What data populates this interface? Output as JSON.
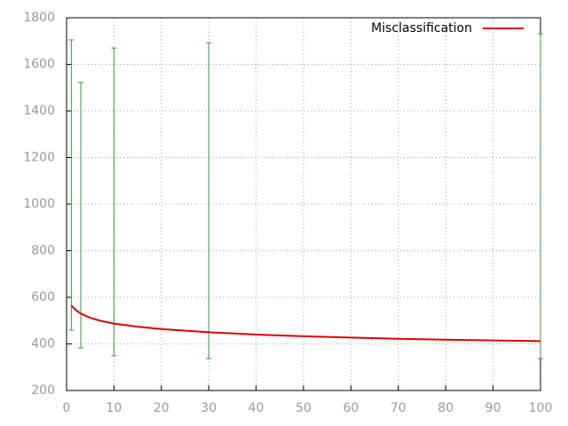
{
  "chart_data": {
    "type": "line",
    "xlim": [
      0,
      100
    ],
    "xticks": [
      0,
      10,
      20,
      30,
      40,
      50,
      60,
      70,
      80,
      90,
      100
    ],
    "ylim": [
      200,
      1800
    ],
    "yticks": [
      200,
      400,
      600,
      800,
      1000,
      1200,
      1400,
      1600,
      1800
    ],
    "grid": true,
    "legend": "top-right",
    "x": [
      1,
      2,
      3,
      5,
      7,
      10,
      15,
      20,
      30,
      40,
      50,
      60,
      70,
      80,
      90,
      100
    ],
    "series": [
      {
        "name": "Misclassification",
        "color": "#e00000",
        "values": [
          565,
          545,
          530,
          512,
          500,
          487,
          474,
          464,
          450,
          440,
          433,
          427,
          422,
          418,
          415,
          412
        ]
      }
    ],
    "error_bars": {
      "color": "#3a9a3a",
      "x": [
        1,
        3,
        10,
        30,
        100
      ],
      "low": [
        459,
        383,
        349,
        337,
        337
      ],
      "high": [
        1705,
        1522,
        1670,
        1693,
        1731
      ]
    }
  }
}
